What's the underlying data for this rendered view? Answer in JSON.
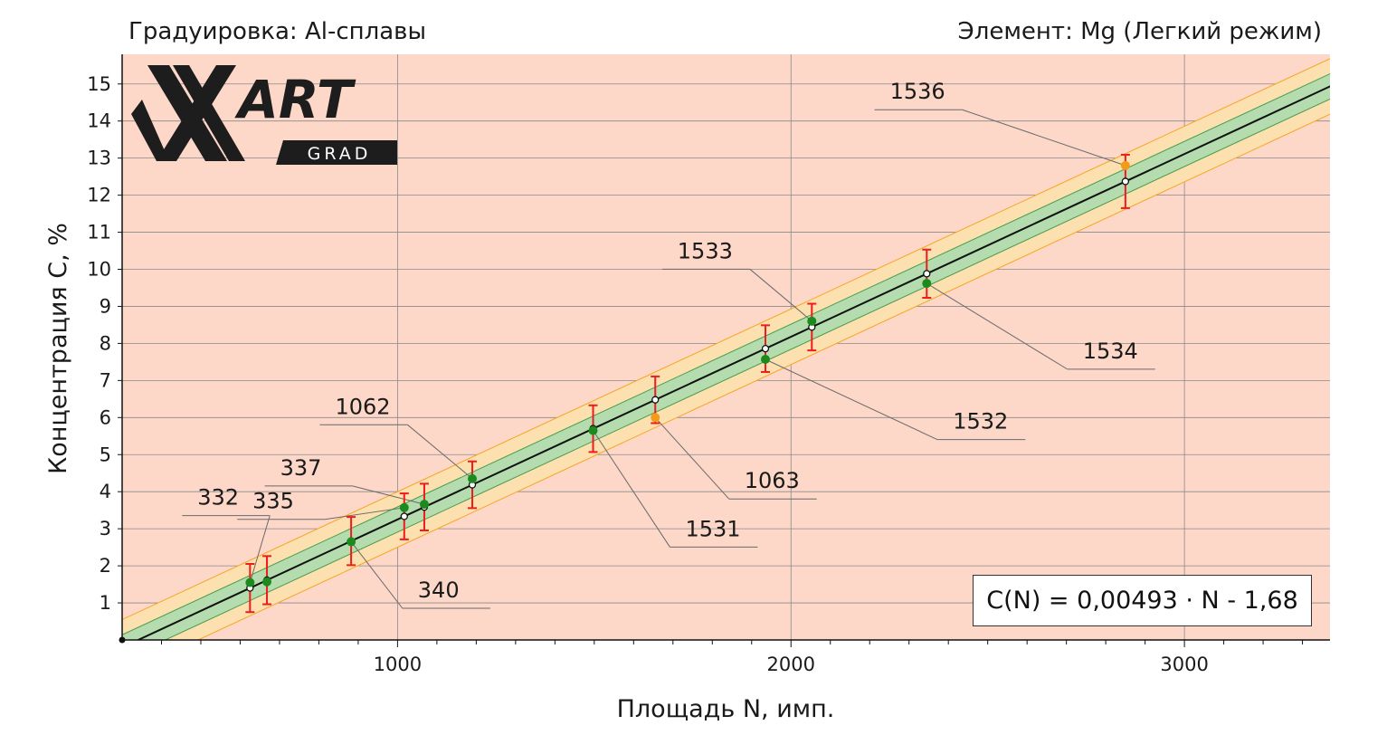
{
  "header": {
    "calibration": "Градуировка: Al-сплавы",
    "element": "Элемент: Mg (Легкий режим)"
  },
  "logo": {
    "text_main": "ART",
    "text_sub": "GRAD"
  },
  "formula": "C(N) = 0,00493 · N - 1,68",
  "colors": {
    "plot_background": "#fdd7c8",
    "inner_band": "#b4dcae",
    "outer_band": "#fde0b0",
    "band_edge": "#f5a623",
    "fit_line": "#111111",
    "error_bar": "#ee1c1c",
    "point_ok": "#1c8a1c",
    "point_warn": "#f39a1a",
    "grid": "#8a8a8a"
  },
  "chart_data": {
    "type": "scatter",
    "xlabel": "Площадь N, имп.",
    "ylabel": "Концентрация С, %",
    "xlim": [
      300,
      3370
    ],
    "ylim": [
      0,
      15.8
    ],
    "x_ticks": [
      1000,
      2000,
      3000
    ],
    "y_ticks": [
      1,
      2,
      3,
      4,
      5,
      6,
      7,
      8,
      9,
      10,
      11,
      12,
      13,
      14,
      15
    ],
    "grid": true,
    "fit": {
      "slope": 0.00493,
      "intercept": -1.68
    },
    "inner_band_halfwidth": 0.34,
    "outer_band_halfwidth": 0.75,
    "points": [
      {
        "label": "332",
        "x": 625,
        "y": 1.55,
        "err": 0.65,
        "status": "ok"
      },
      {
        "label": "",
        "x": 668,
        "y": 1.57,
        "err": 0.65,
        "status": "ok"
      },
      {
        "label": "340",
        "x": 882,
        "y": 2.65,
        "err": 0.65,
        "status": "ok"
      },
      {
        "label": "335",
        "x": 1017,
        "y": 3.57,
        "err": 0.62,
        "status": "ok"
      },
      {
        "label": "337",
        "x": 1068,
        "y": 3.66,
        "err": 0.63,
        "status": "ok"
      },
      {
        "label": "1062",
        "x": 1190,
        "y": 4.35,
        "err": 0.63,
        "status": "ok"
      },
      {
        "label": "1531",
        "x": 1497,
        "y": 5.65,
        "err": 0.63,
        "status": "ok"
      },
      {
        "label": "1063",
        "x": 1655,
        "y": 6.0,
        "err": 0.63,
        "status": "warn"
      },
      {
        "label": "1532",
        "x": 1935,
        "y": 7.57,
        "err": 0.63,
        "status": "ok"
      },
      {
        "label": "1533",
        "x": 2053,
        "y": 8.6,
        "err": 0.63,
        "status": "ok"
      },
      {
        "label": "1534",
        "x": 2345,
        "y": 9.62,
        "err": 0.65,
        "status": "ok"
      },
      {
        "label": "1536",
        "x": 2850,
        "y": 12.8,
        "err": 0.72,
        "status": "warn"
      }
    ]
  },
  "annotations": [
    {
      "text": "332",
      "x": 480,
      "y": 3.55,
      "side": "left",
      "target": 0
    },
    {
      "text": "335",
      "x": 620,
      "y": 3.45,
      "side": "left",
      "target": 3
    },
    {
      "text": "337",
      "x": 690,
      "y": 4.35,
      "side": "left",
      "target": 4
    },
    {
      "text": "1062",
      "x": 830,
      "y": 6.0,
      "side": "left",
      "target": 5
    },
    {
      "text": "340",
      "x": 1040,
      "y": 1.05,
      "side": "right",
      "target": 2
    },
    {
      "text": "1531",
      "x": 1720,
      "y": 2.7,
      "side": "right",
      "target": 6
    },
    {
      "text": "1063",
      "x": 1870,
      "y": 4.0,
      "side": "right",
      "target": 7
    },
    {
      "text": "1532",
      "x": 2400,
      "y": 5.6,
      "side": "right",
      "target": 8
    },
    {
      "text": "1533",
      "x": 1700,
      "y": 10.2,
      "side": "left",
      "target": 9
    },
    {
      "text": "1534",
      "x": 2730,
      "y": 7.5,
      "side": "right",
      "target": 10
    },
    {
      "text": "1536",
      "x": 2240,
      "y": 14.5,
      "side": "left",
      "target": 11
    }
  ]
}
